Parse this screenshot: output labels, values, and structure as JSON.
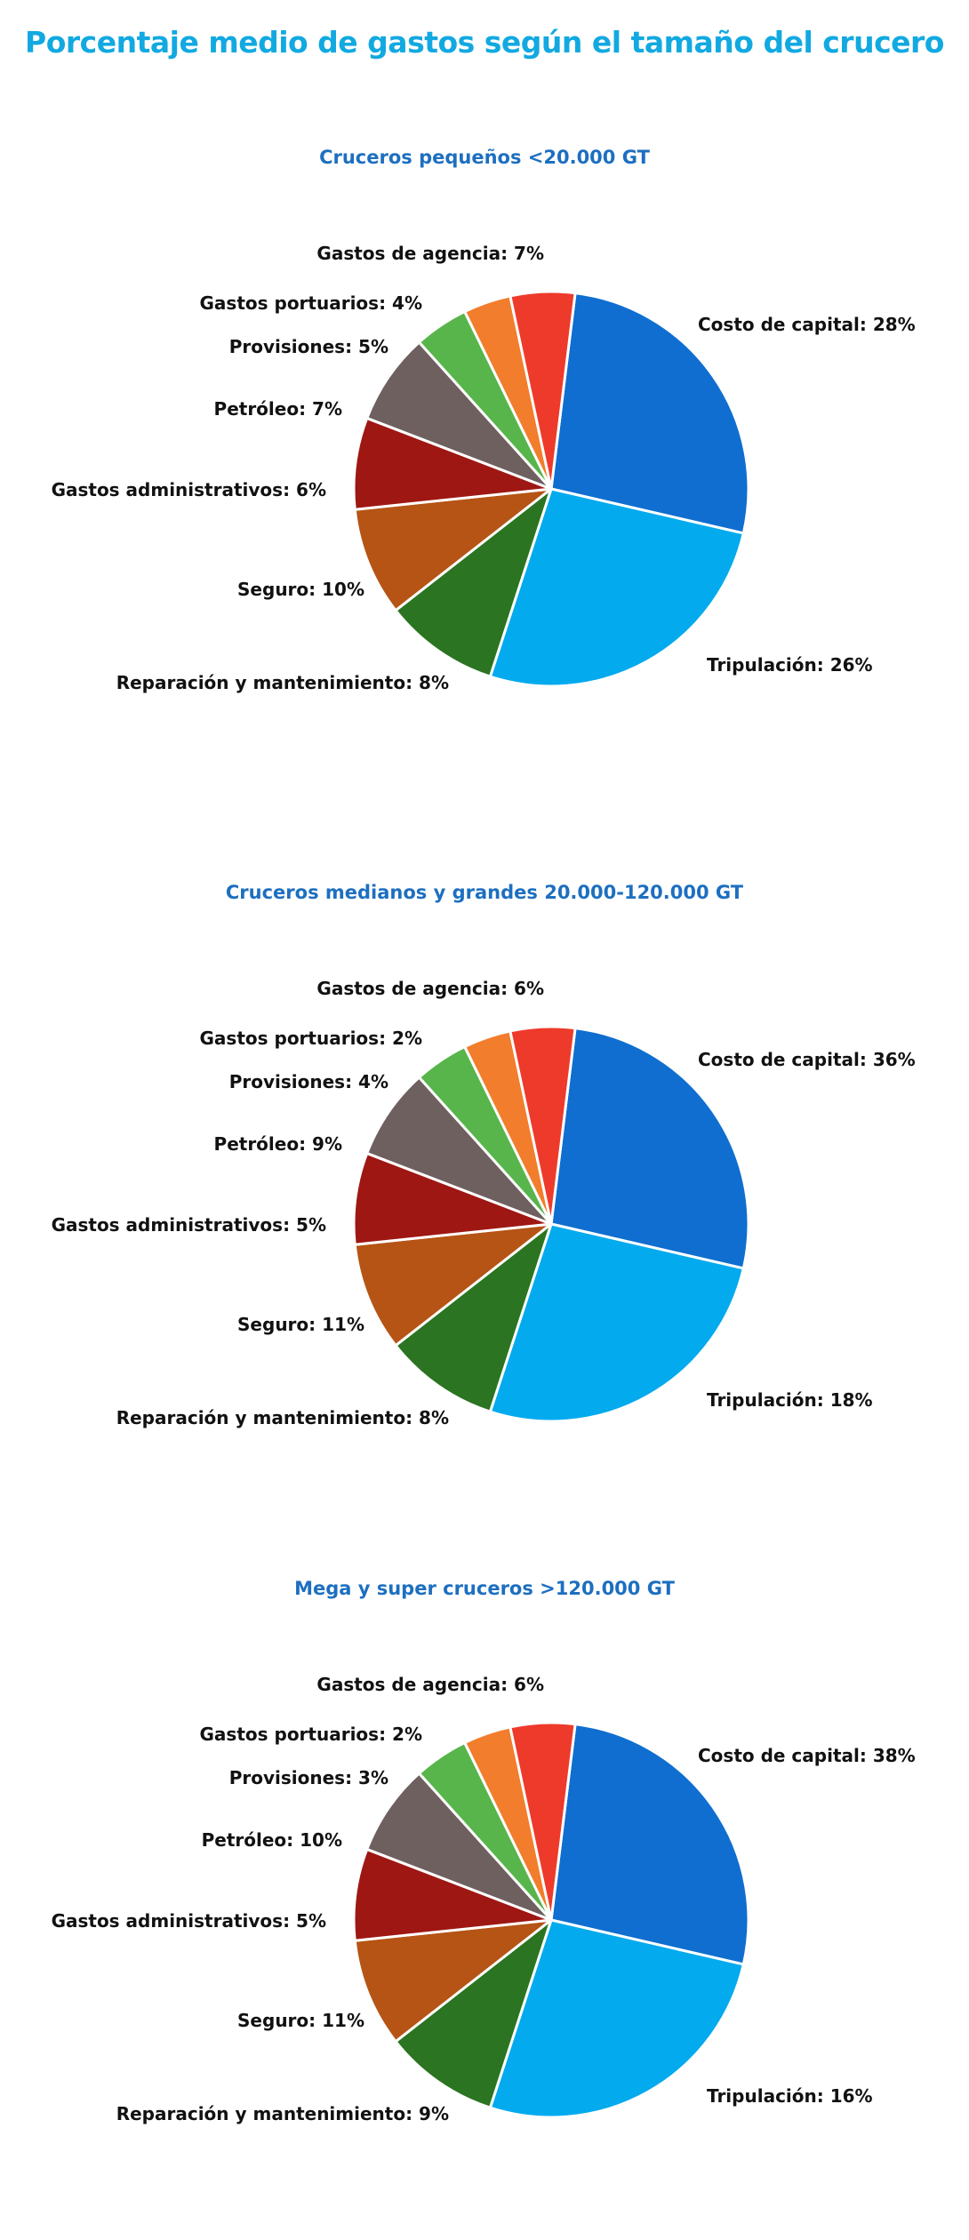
{
  "title": "Porcentaje medio de gastos según el tamaño del crucero",
  "colors": {
    "Costo de capital": "#0f6ed0",
    "Tripulación": "#03aaee",
    "Reparación y mantenimiento": "#2b7421",
    "Seguro": "#b55415",
    "Gastos administrativos": "#9e1713",
    "Petróleo": "#6f6060",
    "Provisiones": "#58b54b",
    "Gastos portuarios": "#f27d2c",
    "Gastos de agencia": "#ee3a2b"
  },
  "chart_data": [
    {
      "type": "pie",
      "title": "Cruceros pequeños <20.000 GT",
      "slices": [
        {
          "label": "Costo de capital",
          "value": 28
        },
        {
          "label": "Tripulación",
          "value": 26
        },
        {
          "label": "Reparación y mantenimiento",
          "value": 8
        },
        {
          "label": "Seguro",
          "value": 10
        },
        {
          "label": "Gastos administrativos",
          "value": 6
        },
        {
          "label": "Petróleo",
          "value": 7
        },
        {
          "label": "Provisiones",
          "value": 5
        },
        {
          "label": "Gastos portuarios",
          "value": 4
        },
        {
          "label": "Gastos de agencia",
          "value": 7
        }
      ]
    },
    {
      "type": "pie",
      "title": "Cruceros medianos y grandes 20.000-120.000 GT",
      "slices": [
        {
          "label": "Costo de capital",
          "value": 36
        },
        {
          "label": "Tripulación",
          "value": 18
        },
        {
          "label": "Reparación y mantenimiento",
          "value": 8
        },
        {
          "label": "Seguro",
          "value": 11
        },
        {
          "label": "Gastos administrativos",
          "value": 5
        },
        {
          "label": "Petróleo",
          "value": 9
        },
        {
          "label": "Provisiones",
          "value": 4
        },
        {
          "label": "Gastos portuarios",
          "value": 2
        },
        {
          "label": "Gastos de agencia",
          "value": 6
        }
      ]
    },
    {
      "type": "pie",
      "title": "Mega y super cruceros >120.000 GT",
      "slices": [
        {
          "label": "Costo de capital",
          "value": 38
        },
        {
          "label": "Tripulación",
          "value": 16
        },
        {
          "label": "Reparación y mantenimiento",
          "value": 9
        },
        {
          "label": "Seguro",
          "value": 11
        },
        {
          "label": "Gastos administrativos",
          "value": 5
        },
        {
          "label": "Petróleo",
          "value": 10
        },
        {
          "label": "Provisiones",
          "value": 3
        },
        {
          "label": "Gastos portuarios",
          "value": 2
        },
        {
          "label": "Gastos de agencia",
          "value": 6
        }
      ]
    }
  ]
}
